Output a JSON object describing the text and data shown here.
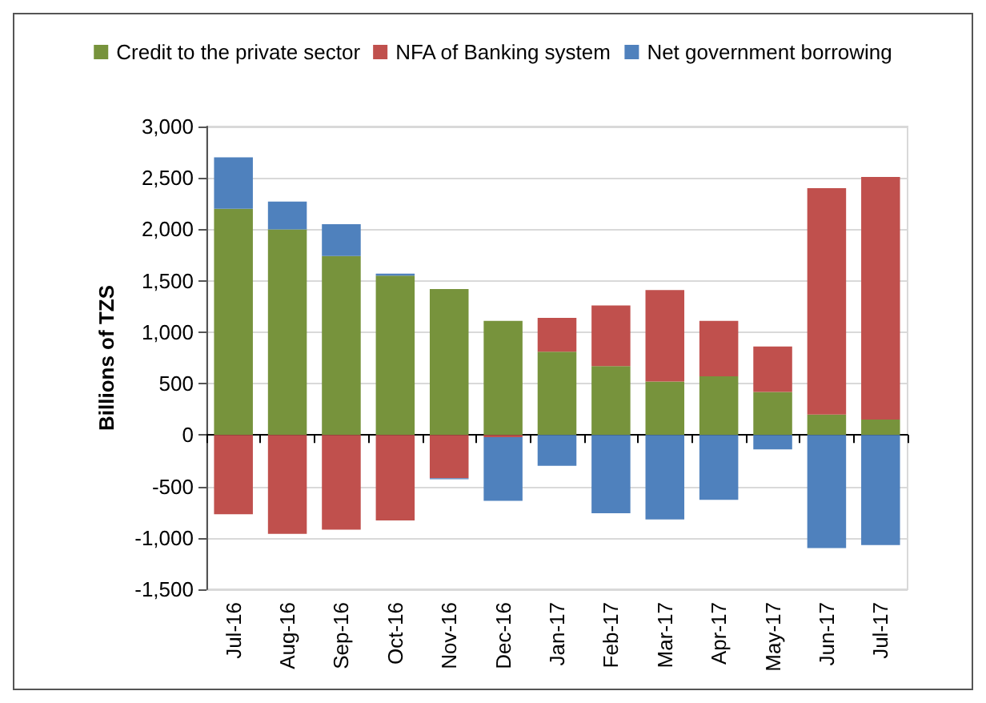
{
  "chart_data": {
    "type": "bar",
    "stacked": true,
    "ylabel": "Billions of TZS",
    "categories": [
      "Jul-16",
      "Aug-16",
      "Sep-16",
      "Oct-16",
      "Nov-16",
      "Dec-16",
      "Jan-17",
      "Feb-17",
      "Mar-17",
      "Apr-17",
      "May-17",
      "Jun-17",
      "Jul-17"
    ],
    "series": [
      {
        "name": "Credit to the private sector",
        "color": "#77933c",
        "values": [
          2200,
          2000,
          1740,
          1550,
          1420,
          1110,
          810,
          670,
          520,
          570,
          420,
          200,
          150
        ]
      },
      {
        "name": "NFA of Banking system",
        "color": "#c0504d",
        "values": [
          -770,
          -960,
          -920,
          -830,
          -420,
          -20,
          330,
          590,
          890,
          540,
          440,
          2200,
          2360
        ]
      },
      {
        "name": "Net government borrowing",
        "color": "#4f81bd",
        "values": [
          500,
          270,
          310,
          20,
          -10,
          -620,
          -300,
          -760,
          -820,
          -630,
          -140,
          -1100,
          -1070
        ]
      }
    ],
    "ylim": [
      -1500,
      3000
    ],
    "yticks": [
      {
        "value": -1500,
        "label": "-1,500"
      },
      {
        "value": -1000,
        "label": "-1,000"
      },
      -500,
      0,
      500,
      {
        "value": 1000,
        "label": "1,000"
      },
      {
        "value": 1500,
        "label": "1,500"
      },
      {
        "value": 2000,
        "label": "2,000"
      },
      {
        "value": 2500,
        "label": "2,500"
      },
      {
        "value": 3000,
        "label": "3,000"
      }
    ],
    "grid": "y",
    "legend": "top"
  }
}
